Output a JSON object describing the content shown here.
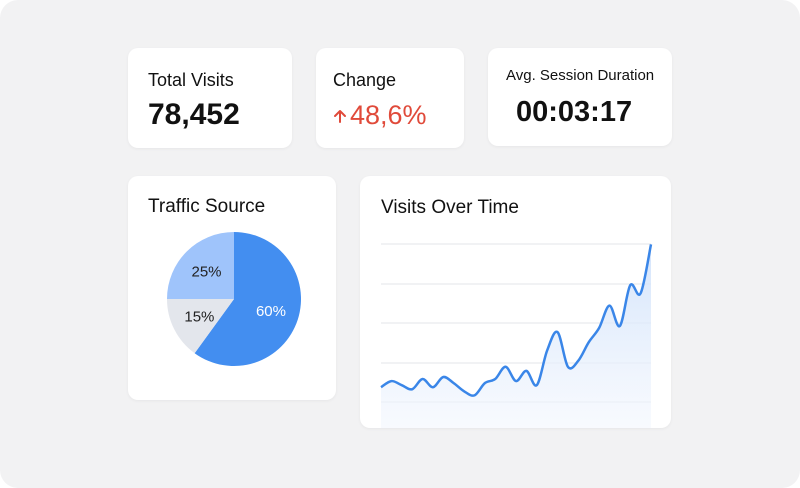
{
  "kpis": {
    "total_visits": {
      "label": "Total Visits",
      "value": "78,452"
    },
    "change": {
      "label": "Change",
      "value": "48,6%",
      "direction_icon": "arrow-up-icon",
      "color": "#e04a3a"
    },
    "session": {
      "label": "Avg. Session Duration",
      "value": "00:03:17"
    }
  },
  "traffic_source": {
    "title": "Traffic Source",
    "chart_data": {
      "type": "pie",
      "title": "Traffic Source",
      "slices": [
        {
          "label": "60%",
          "value": 60,
          "color": "#438ef0",
          "text_color": "#ffffff"
        },
        {
          "label": "15%",
          "value": 15,
          "color": "#e3e6ec",
          "text_color": "#222222"
        },
        {
          "label": "25%",
          "value": 25,
          "color": "#9fc4fb",
          "text_color": "#222222"
        }
      ]
    }
  },
  "visits_over_time": {
    "title": "Visits Over Time",
    "chart_data": {
      "type": "area",
      "title": "Visits Over Time",
      "grid": true,
      "line_color": "#3a86e8",
      "y_range": [
        0,
        100
      ],
      "x": [
        0,
        1,
        2,
        3,
        4,
        5,
        6,
        7,
        8,
        9,
        10,
        11,
        12,
        13,
        14,
        15,
        16,
        17,
        18,
        19,
        20,
        21,
        22,
        23,
        24,
        25,
        26
      ],
      "values": [
        20,
        23,
        21,
        19,
        24,
        20,
        25,
        22,
        18,
        16,
        22,
        24,
        30,
        23,
        28,
        21,
        38,
        47,
        30,
        33,
        42,
        49,
        60,
        50,
        70,
        66,
        90
      ]
    }
  }
}
